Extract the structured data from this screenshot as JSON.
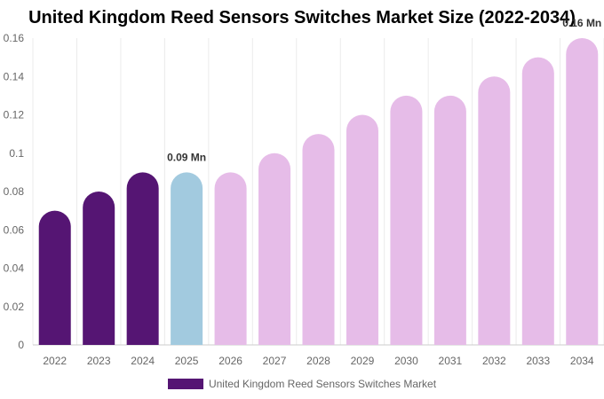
{
  "chart_data": {
    "type": "bar",
    "title": "United Kingdom Reed Sensors Switches Market Size (2022-2034)",
    "xlabel": "",
    "ylabel": "",
    "categories": [
      "2022",
      "2023",
      "2024",
      "2025",
      "2026",
      "2027",
      "2028",
      "2029",
      "2030",
      "2031",
      "2032",
      "2033",
      "2034"
    ],
    "series": [
      {
        "name": "United Kingdom Reed Sensors Switches Market",
        "values": [
          0.07,
          0.08,
          0.09,
          0.09,
          0.09,
          0.1,
          0.11,
          0.12,
          0.13,
          0.13,
          0.14,
          0.15,
          0.16
        ]
      }
    ],
    "ylim": [
      0,
      0.16
    ],
    "yticks": [
      "0",
      "0.02",
      "0.04",
      "0.06",
      "0.08",
      "0.1",
      "0.12",
      "0.14",
      "0.16"
    ],
    "ytick_values": [
      0,
      0.02,
      0.04,
      0.06,
      0.08,
      0.1,
      0.12,
      0.14,
      0.16
    ],
    "grid": "vertical",
    "legend_placement": "bottom-center",
    "data_labels": [
      {
        "category": "2025",
        "text": "0.09 Mn"
      },
      {
        "category": "2034",
        "text": "0.16 Mn"
      }
    ],
    "bar_colors": {
      "historical": "#551573",
      "current": "#a2cadf",
      "forecast": "#e6bce8"
    },
    "bar_color_groups": [
      "historical",
      "historical",
      "historical",
      "current",
      "forecast",
      "forecast",
      "forecast",
      "forecast",
      "forecast",
      "forecast",
      "forecast",
      "forecast",
      "forecast"
    ]
  }
}
